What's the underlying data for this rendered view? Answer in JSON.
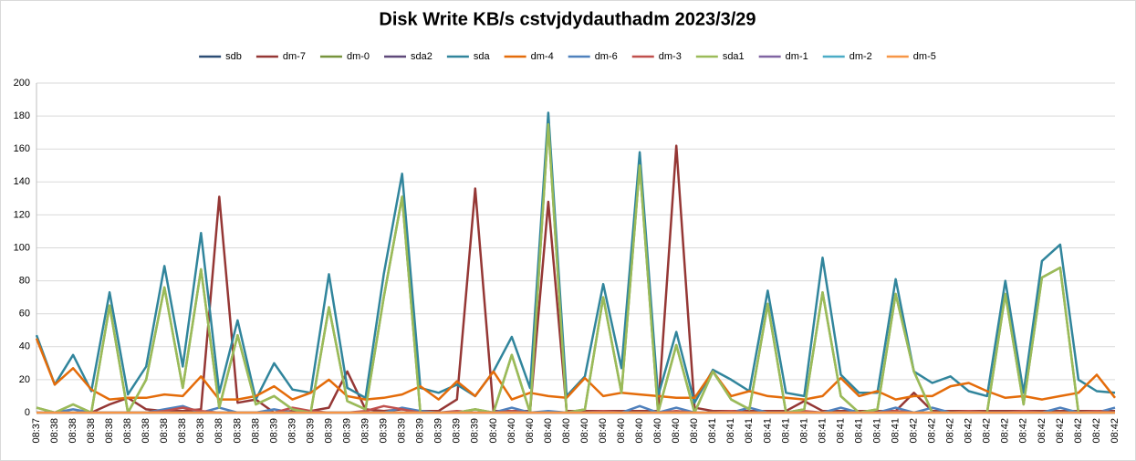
{
  "chart_data": {
    "type": "line",
    "title": "Disk Write KB/s cstvjdydauthadm  2023/3/29",
    "categories": [
      "08:37",
      "08:38",
      "08:38",
      "08:38",
      "08:38",
      "08:38",
      "08:38",
      "08:38",
      "08:38",
      "08:38",
      "08:38",
      "08:38",
      "08:38",
      "08:39",
      "08:39",
      "08:39",
      "08:39",
      "08:39",
      "08:39",
      "08:39",
      "08:39",
      "08:39",
      "08:39",
      "08:39",
      "08:39",
      "08:40",
      "08:40",
      "08:40",
      "08:40",
      "08:40",
      "08:40",
      "08:40",
      "08:40",
      "08:40",
      "08:40",
      "08:40",
      "08:40",
      "08:41",
      "08:41",
      "08:41",
      "08:41",
      "08:41",
      "08:41",
      "08:41",
      "08:41",
      "08:41",
      "08:41",
      "08:41",
      "08:42",
      "08:42",
      "08:42",
      "08:42",
      "08:42",
      "08:42",
      "08:42",
      "08:42",
      "08:42",
      "08:42",
      "08:42",
      "08:42"
    ],
    "series": [
      {
        "name": "sdb",
        "color": "#2c4d75",
        "values": [
          0,
          0,
          0,
          0,
          0,
          0,
          0,
          0,
          0,
          0,
          0,
          0,
          0,
          0,
          0,
          0,
          0,
          0,
          0,
          0,
          0,
          0,
          0,
          0,
          0,
          0,
          0,
          0,
          0,
          0,
          0,
          0,
          0,
          0,
          0,
          0,
          0,
          0,
          0,
          0,
          0,
          0,
          0,
          0,
          0,
          0,
          0,
          0,
          0,
          0,
          0,
          0,
          0,
          0,
          0,
          0,
          0,
          0,
          0,
          0
        ]
      },
      {
        "name": "dm-7",
        "color": "#953735",
        "values": [
          0,
          0,
          0,
          0,
          5,
          9,
          2,
          1,
          1,
          2,
          131,
          6,
          8,
          0,
          1,
          1,
          3,
          25,
          2,
          1,
          2,
          1,
          1,
          8,
          136,
          1,
          1,
          1,
          128,
          1,
          1,
          1,
          1,
          1,
          1,
          162,
          3,
          1,
          1,
          1,
          1,
          1,
          7,
          1,
          1,
          1,
          1,
          1,
          12,
          1,
          1,
          1,
          1,
          1,
          1,
          1,
          1,
          1,
          1,
          1
        ]
      },
      {
        "name": "dm-0",
        "color": "#77933c",
        "values": [
          3,
          0,
          5,
          0,
          65,
          0,
          20,
          76,
          15,
          87,
          3,
          47,
          5,
          10,
          2,
          0,
          64,
          7,
          2,
          70,
          131,
          0,
          0,
          0,
          2,
          0,
          35,
          0,
          175,
          0,
          2,
          70,
          12,
          150,
          0,
          41,
          0,
          25,
          8,
          2,
          66,
          0,
          2,
          73,
          10,
          0,
          2,
          72,
          25,
          0,
          0,
          0,
          0,
          72,
          5,
          82,
          88,
          0,
          0,
          0
        ]
      },
      {
        "name": "sda2",
        "color": "#5f497a",
        "values": [
          0,
          0,
          0,
          0,
          0,
          0,
          0,
          0,
          0,
          0,
          0,
          0,
          0,
          0,
          0,
          0,
          0,
          0,
          0,
          0,
          0,
          0,
          0,
          0,
          0,
          0,
          0,
          0,
          0,
          0,
          0,
          0,
          0,
          0,
          0,
          0,
          0,
          0,
          0,
          0,
          0,
          0,
          0,
          0,
          0,
          0,
          0,
          0,
          0,
          0,
          0,
          0,
          0,
          0,
          0,
          0,
          0,
          0,
          0,
          0
        ]
      },
      {
        "name": "sda",
        "color": "#31859c",
        "values": [
          47,
          17,
          35,
          13,
          73,
          11,
          28,
          89,
          28,
          109,
          12,
          56,
          8,
          30,
          14,
          12,
          84,
          15,
          9,
          84,
          145,
          15,
          12,
          17,
          10,
          25,
          46,
          15,
          182,
          10,
          22,
          78,
          27,
          158,
          10,
          49,
          6,
          26,
          20,
          13,
          74,
          12,
          10,
          94,
          23,
          12,
          12,
          81,
          25,
          18,
          22,
          13,
          10,
          80,
          12,
          92,
          102,
          20,
          13,
          12
        ]
      },
      {
        "name": "dm-4",
        "color": "#e46c0a",
        "values": [
          45,
          17,
          27,
          14,
          8,
          9,
          9,
          11,
          10,
          22,
          8,
          8,
          10,
          16,
          8,
          12,
          20,
          10,
          8,
          9,
          11,
          16,
          8,
          19,
          10,
          25,
          8,
          12,
          10,
          9,
          21,
          10,
          12,
          11,
          10,
          9,
          9,
          25,
          10,
          13,
          10,
          9,
          8,
          10,
          21,
          10,
          13,
          8,
          10,
          10,
          16,
          18,
          13,
          9,
          10,
          8,
          10,
          12,
          23,
          9
        ]
      },
      {
        "name": "dm-6",
        "color": "#4f81bd",
        "values": [
          0,
          0,
          2,
          0,
          0,
          0,
          0,
          2,
          4,
          0,
          3,
          0,
          0,
          2,
          0,
          0,
          0,
          0,
          0,
          0,
          3,
          1,
          0,
          0,
          0,
          0,
          3,
          0,
          1,
          0,
          0,
          0,
          0,
          4,
          0,
          3,
          0,
          0,
          0,
          3,
          0,
          0,
          0,
          0,
          3,
          0,
          0,
          3,
          0,
          3,
          0,
          0,
          0,
          0,
          0,
          0,
          3,
          0,
          0,
          3
        ]
      },
      {
        "name": "dm-3",
        "color": "#c0504d",
        "values": [
          0,
          0,
          0,
          0,
          0,
          0,
          0,
          1,
          3,
          1,
          0,
          0,
          0,
          0,
          3,
          1,
          0,
          0,
          1,
          4,
          2,
          0,
          0,
          1,
          0,
          0,
          1,
          0,
          0,
          0,
          0,
          1,
          0,
          0,
          0,
          1,
          0,
          0,
          1,
          0,
          0,
          0,
          1,
          0,
          0,
          0,
          0,
          1,
          0,
          0,
          0,
          1,
          0,
          0,
          1,
          0,
          0,
          0,
          1,
          0
        ]
      },
      {
        "name": "sda1",
        "color": "#9bbb59",
        "values": [
          3,
          0,
          5,
          0,
          65,
          0,
          20,
          76,
          15,
          87,
          3,
          47,
          5,
          10,
          2,
          0,
          64,
          7,
          2,
          70,
          131,
          0,
          0,
          0,
          2,
          0,
          35,
          0,
          175,
          0,
          2,
          70,
          12,
          150,
          0,
          41,
          0,
          25,
          8,
          2,
          66,
          0,
          2,
          73,
          10,
          0,
          2,
          72,
          25,
          0,
          0,
          0,
          0,
          72,
          5,
          82,
          88,
          0,
          0,
          0
        ]
      },
      {
        "name": "dm-1",
        "color": "#8064a2",
        "values": [
          0,
          0,
          0,
          0,
          0,
          0,
          0,
          0,
          0,
          0,
          0,
          0,
          0,
          0,
          0,
          0,
          0,
          0,
          0,
          0,
          0,
          0,
          0,
          0,
          0,
          0,
          0,
          0,
          0,
          0,
          0,
          0,
          0,
          0,
          0,
          0,
          0,
          0,
          0,
          0,
          0,
          0,
          0,
          0,
          0,
          0,
          0,
          0,
          0,
          0,
          0,
          0,
          0,
          0,
          0,
          0,
          0,
          0,
          0,
          0
        ]
      },
      {
        "name": "dm-2",
        "color": "#4bacc6",
        "values": [
          0,
          0,
          0,
          0,
          0,
          0,
          0,
          0,
          0,
          0,
          0,
          0,
          0,
          0,
          0,
          0,
          0,
          0,
          0,
          0,
          0,
          0,
          0,
          0,
          0,
          0,
          0,
          0,
          0,
          0,
          0,
          0,
          0,
          0,
          0,
          0,
          0,
          0,
          0,
          0,
          0,
          0,
          0,
          0,
          0,
          0,
          0,
          0,
          0,
          0,
          0,
          0,
          0,
          0,
          0,
          0,
          0,
          0,
          0,
          0
        ]
      },
      {
        "name": "dm-5",
        "color": "#f79646",
        "values": [
          0,
          0,
          0,
          0,
          0,
          0,
          0,
          0,
          0,
          0,
          0,
          0,
          0,
          0,
          0,
          0,
          0,
          0,
          0,
          0,
          0,
          0,
          0,
          0,
          0,
          0,
          0,
          0,
          0,
          0,
          0,
          0,
          0,
          0,
          0,
          0,
          0,
          0,
          0,
          0,
          0,
          0,
          0,
          0,
          0,
          0,
          0,
          0,
          0,
          0,
          0,
          0,
          0,
          0,
          0,
          0,
          0,
          0,
          0,
          0
        ]
      }
    ],
    "ylim": [
      0,
      200
    ],
    "yticks": [
      0,
      20,
      40,
      60,
      80,
      100,
      120,
      140,
      160,
      180,
      200
    ],
    "grid": true,
    "legend": "top"
  }
}
